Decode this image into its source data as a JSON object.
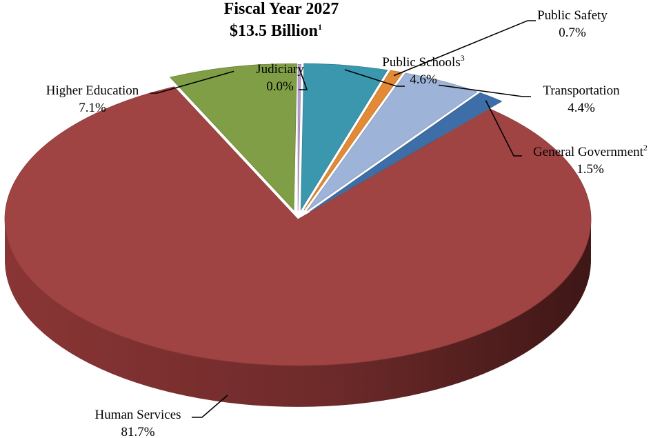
{
  "chart_data": {
    "type": "pie",
    "title_line1": "Fiscal Year 2027",
    "title_line2": "$13.5 Billion",
    "title_sup": "1",
    "slices": [
      {
        "key": "judiciary",
        "name": "Judiciary",
        "sup": "",
        "value": 0.0,
        "pct_label": "0.0%",
        "color": "#b9a0cf"
      },
      {
        "key": "public_schools",
        "name": "Public Schools",
        "sup": "3",
        "value": 4.6,
        "pct_label": "4.6%",
        "color": "#3a97ad"
      },
      {
        "key": "public_safety",
        "name": "Public Safety",
        "sup": "",
        "value": 0.7,
        "pct_label": "0.7%",
        "color": "#e28a35"
      },
      {
        "key": "transportation",
        "name": "Transportation",
        "sup": "",
        "value": 4.4,
        "pct_label": "4.4%",
        "color": "#9eb3d8"
      },
      {
        "key": "general_government",
        "name": "General Government",
        "sup": "2",
        "value": 1.5,
        "pct_label": "1.5%",
        "color": "#3d6ea8"
      },
      {
        "key": "human_services",
        "name": "Human Services",
        "sup": "",
        "value": 81.7,
        "pct_label": "81.7%",
        "color": "#a04343"
      },
      {
        "key": "higher_education",
        "name": "Higher Education",
        "sup": "",
        "value": 7.1,
        "pct_label": "7.1%",
        "color": "#7f9e45"
      }
    ]
  }
}
